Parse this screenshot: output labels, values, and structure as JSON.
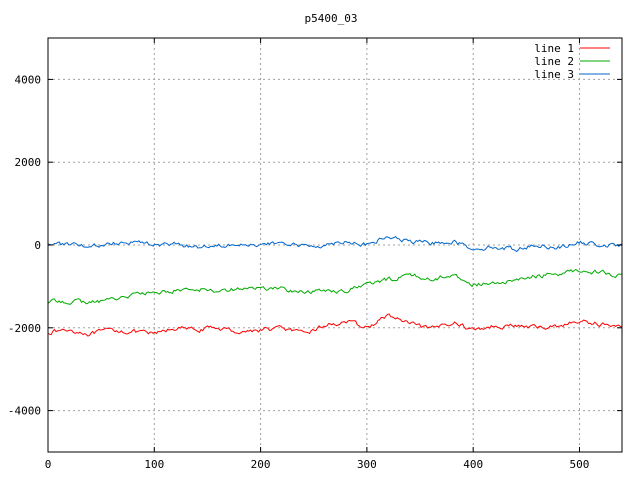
{
  "chart_data": {
    "type": "line",
    "title": "p5400_03",
    "xlabel": "",
    "ylabel": "",
    "xlim": [
      0,
      540
    ],
    "ylim": [
      -5000,
      5000
    ],
    "xticks": [
      0,
      100,
      200,
      300,
      400,
      500
    ],
    "yticks": [
      -4000,
      -2000,
      0,
      2000,
      4000
    ],
    "grid": true,
    "legend_position": "top-right",
    "x": [
      0,
      20,
      40,
      60,
      80,
      100,
      120,
      140,
      160,
      180,
      200,
      220,
      240,
      260,
      280,
      300,
      320,
      340,
      360,
      380,
      400,
      420,
      440,
      460,
      480,
      500,
      520,
      540
    ],
    "series": [
      {
        "name": "line 1",
        "color": "#ff0000",
        "values": [
          -2100,
          -2050,
          -2150,
          -2050,
          -2100,
          -2150,
          -2000,
          -2050,
          -2000,
          -2100,
          -2050,
          -2000,
          -2150,
          -1950,
          -1850,
          -2000,
          -1700,
          -1900,
          -2050,
          -1850,
          -2050,
          -1950,
          -1950,
          -2000,
          -1950,
          -1850,
          -1900,
          -2000
        ]
      },
      {
        "name": "line 2",
        "color": "#00aa00",
        "values": [
          -1380,
          -1350,
          -1400,
          -1300,
          -1200,
          -1150,
          -1100,
          -1050,
          -1100,
          -1050,
          -1050,
          -1050,
          -1150,
          -1100,
          -1100,
          -950,
          -850,
          -700,
          -850,
          -700,
          -950,
          -950,
          -850,
          -750,
          -700,
          -600,
          -650,
          -750
        ]
      },
      {
        "name": "line 3",
        "color": "#0066cc",
        "values": [
          50,
          0,
          -50,
          50,
          100,
          0,
          20,
          -50,
          0,
          50,
          -20,
          50,
          -30,
          0,
          100,
          0,
          200,
          80,
          50,
          100,
          -80,
          -50,
          -100,
          0,
          -50,
          50,
          0,
          -20
        ]
      }
    ]
  }
}
